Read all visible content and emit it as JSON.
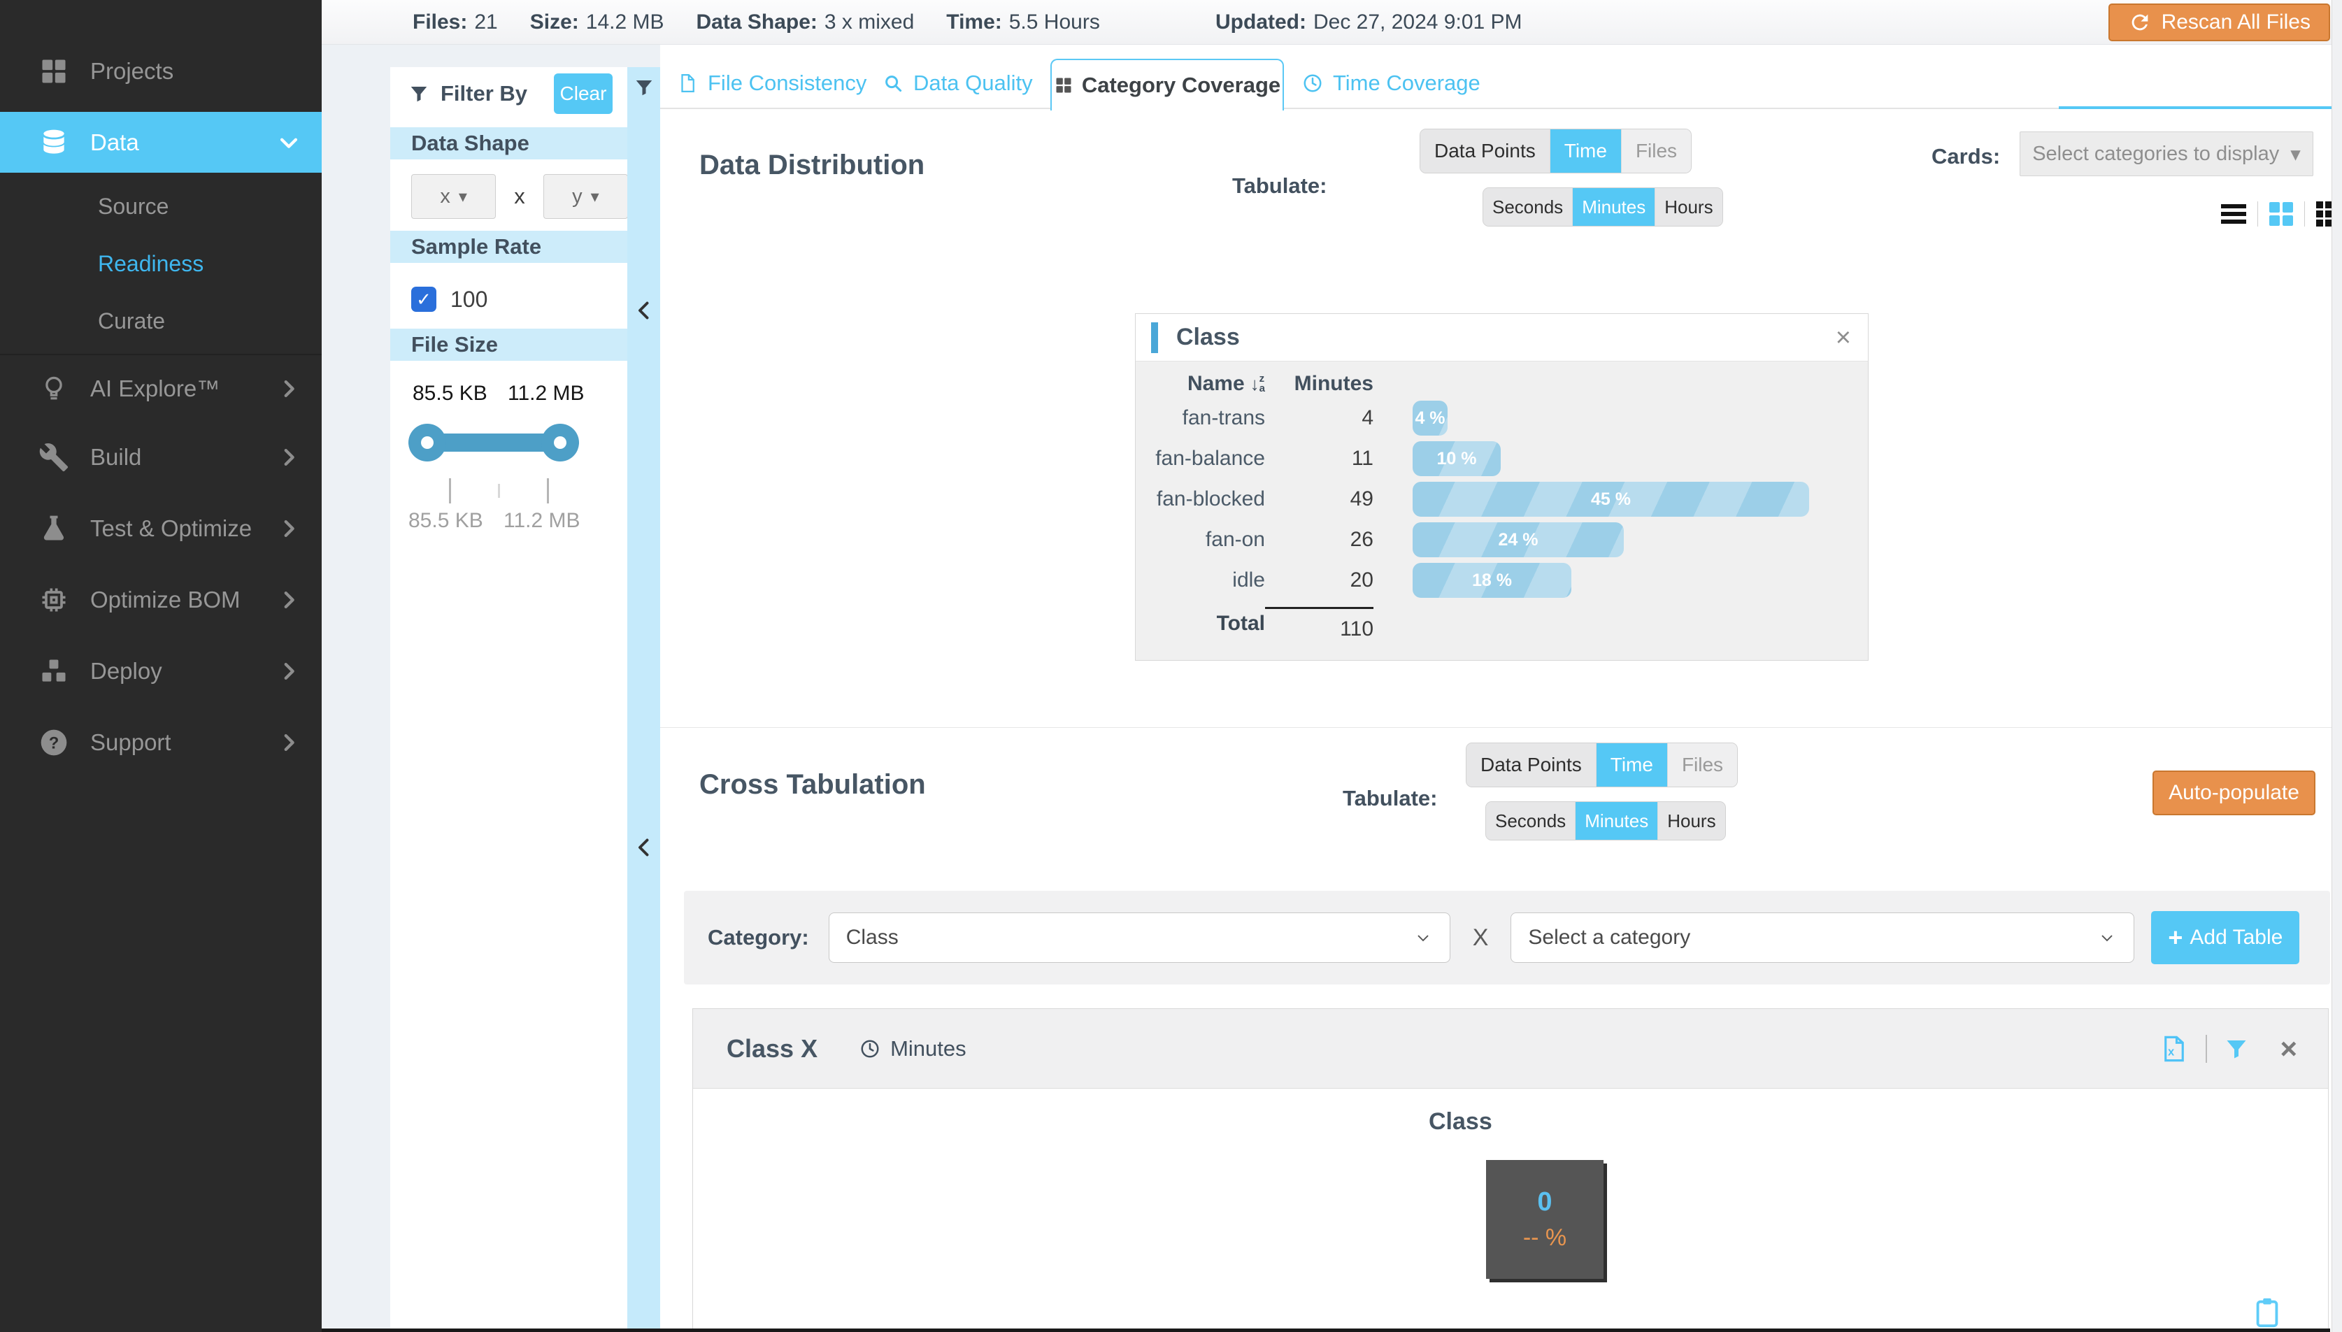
{
  "icons": {
    "close": "×",
    "caret": "▾",
    "check": "✓",
    "plus": "+",
    "sort_arrow": "↓",
    "sort_top": "z",
    "sort_bottom": "a"
  },
  "colors": {
    "accent": "#55c8f5",
    "orange": "#e8914c",
    "bar_blue": "#9ccfe8",
    "cell_bg": "#555555",
    "cell_value": "#5bc0f0",
    "cell_percent": "#e8954f"
  },
  "sidebar": {
    "items": [
      {
        "label": "Projects"
      },
      {
        "label": "Data"
      },
      {
        "label": "AI Explore™"
      },
      {
        "label": "Build"
      },
      {
        "label": "Test & Optimize"
      },
      {
        "label": "Optimize BOM"
      },
      {
        "label": "Deploy"
      },
      {
        "label": "Support"
      }
    ],
    "data_children": [
      {
        "label": "Source"
      },
      {
        "label": "Readiness"
      },
      {
        "label": "Curate"
      }
    ]
  },
  "topbar": {
    "stats": [
      {
        "label": "Files:",
        "value": "21"
      },
      {
        "label": "Size:",
        "value": "14.2 MB"
      },
      {
        "label": "Data Shape:",
        "value": "3 x mixed"
      },
      {
        "label": "Time:",
        "value": "5.5 Hours"
      }
    ],
    "updated": {
      "label": "Updated:",
      "value": "Dec 27, 2024 9:01 PM"
    },
    "rescan_button": "Rescan All Files"
  },
  "filter": {
    "title": "Filter By",
    "clear_button": "Clear",
    "data_shape": {
      "header": "Data Shape",
      "x_value": "x",
      "times": "x",
      "y_value": "y"
    },
    "sample_rate": {
      "header": "Sample Rate",
      "option": "100",
      "checked": true
    },
    "file_size": {
      "header": "File Size",
      "min": "85.5 KB",
      "max": "11.2 MB",
      "tick_min": "85.5 KB",
      "tick_max": "11.2 MB"
    }
  },
  "tabs": [
    {
      "label": "File Consistency"
    },
    {
      "label": "Data Quality"
    },
    {
      "label": "Category Coverage",
      "active": true
    },
    {
      "label": "Time Coverage"
    }
  ],
  "tabulate": {
    "label": "Tabulate:",
    "measure_options": [
      "Data Points",
      "Time",
      "Files"
    ],
    "unit_options": [
      "Seconds",
      "Minutes",
      "Hours"
    ],
    "muted_options": [
      "Files"
    ],
    "distribution": {
      "measure_selected": "Time",
      "unit_selected": "Minutes"
    },
    "cross": {
      "measure_selected": "Time",
      "unit_selected": "Minutes"
    }
  },
  "distribution": {
    "title": "Data Distribution",
    "cards_label": "Cards:",
    "cards_placeholder": "Select categories to display"
  },
  "class_card": {
    "title": "Class",
    "columns": [
      "Name",
      "Minutes"
    ],
    "rows": [
      {
        "name": "fan-trans",
        "minutes": "4",
        "percent": 4,
        "percent_label": "4 %"
      },
      {
        "name": "fan-balance",
        "minutes": "11",
        "percent": 10,
        "percent_label": "10 %"
      },
      {
        "name": "fan-blocked",
        "minutes": "49",
        "percent": 45,
        "percent_label": "45 %"
      },
      {
        "name": "fan-on",
        "minutes": "26",
        "percent": 24,
        "percent_label": "24 %"
      },
      {
        "name": "idle",
        "minutes": "20",
        "percent": 18,
        "percent_label": "18 %"
      }
    ],
    "total_label": "Total",
    "total_value": "110"
  },
  "cross_tab": {
    "title": "Cross Tabulation",
    "autopopulate_button": "Auto-populate",
    "category_label": "Category:",
    "category_selected": "Class",
    "cross_symbol": "X",
    "category2_placeholder": "Select a category",
    "add_table_button": "Add Table"
  },
  "cross_card": {
    "title": "Class X",
    "unit_label": "Minutes",
    "axis_label": "Class",
    "cell": {
      "value": "0",
      "percent": "-- %"
    }
  }
}
